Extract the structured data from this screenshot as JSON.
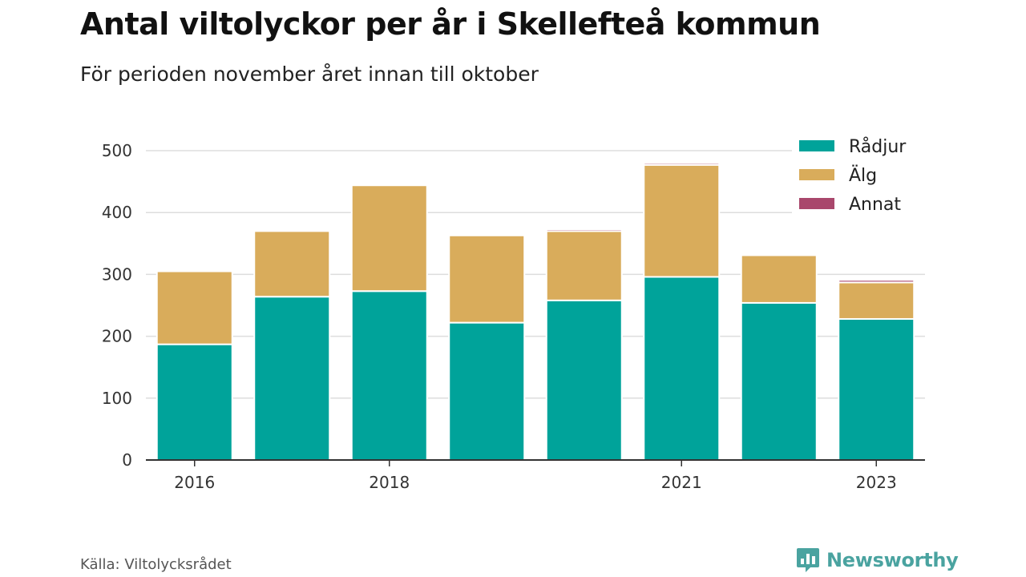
{
  "header": {
    "title": "Antal viltolyckor per år i Skellefteå kommun",
    "subtitle": "För perioden november året innan till oktober"
  },
  "footer": {
    "source": "Källa: Viltolycksrådet",
    "brand": "Newsworthy",
    "brand_icon": "bar-chart-speech-bubble-icon",
    "brand_color": "#4aa3a0"
  },
  "chart_data": {
    "type": "bar",
    "stacked": true,
    "title": "Antal viltolyckor per år i Skellefteå kommun",
    "subtitle": "För perioden november året innan till oktober",
    "categories": [
      "2016",
      "2017",
      "2018",
      "2019",
      "2020",
      "2021",
      "2022",
      "2023"
    ],
    "x_tick_labels": [
      "2016",
      "",
      "2018",
      "",
      "",
      "2021",
      "",
      "2023"
    ],
    "series": [
      {
        "name": "Rådjur",
        "color": "#00a39a",
        "values": [
          187,
          264,
          273,
          222,
          258,
          296,
          254,
          228
        ]
      },
      {
        "name": "Älg",
        "color": "#d9ac5b",
        "values": [
          118,
          106,
          171,
          141,
          112,
          181,
          77,
          59
        ]
      },
      {
        "name": "Annat",
        "color": "#a9476c",
        "values": [
          0,
          0,
          0,
          0,
          3,
          3,
          2,
          4
        ]
      }
    ],
    "yticks": [
      0,
      100,
      200,
      300,
      400,
      500
    ],
    "ylim": [
      0,
      500
    ],
    "xlabel": "",
    "ylabel": "",
    "grid": true,
    "legend_position": "top-right"
  }
}
